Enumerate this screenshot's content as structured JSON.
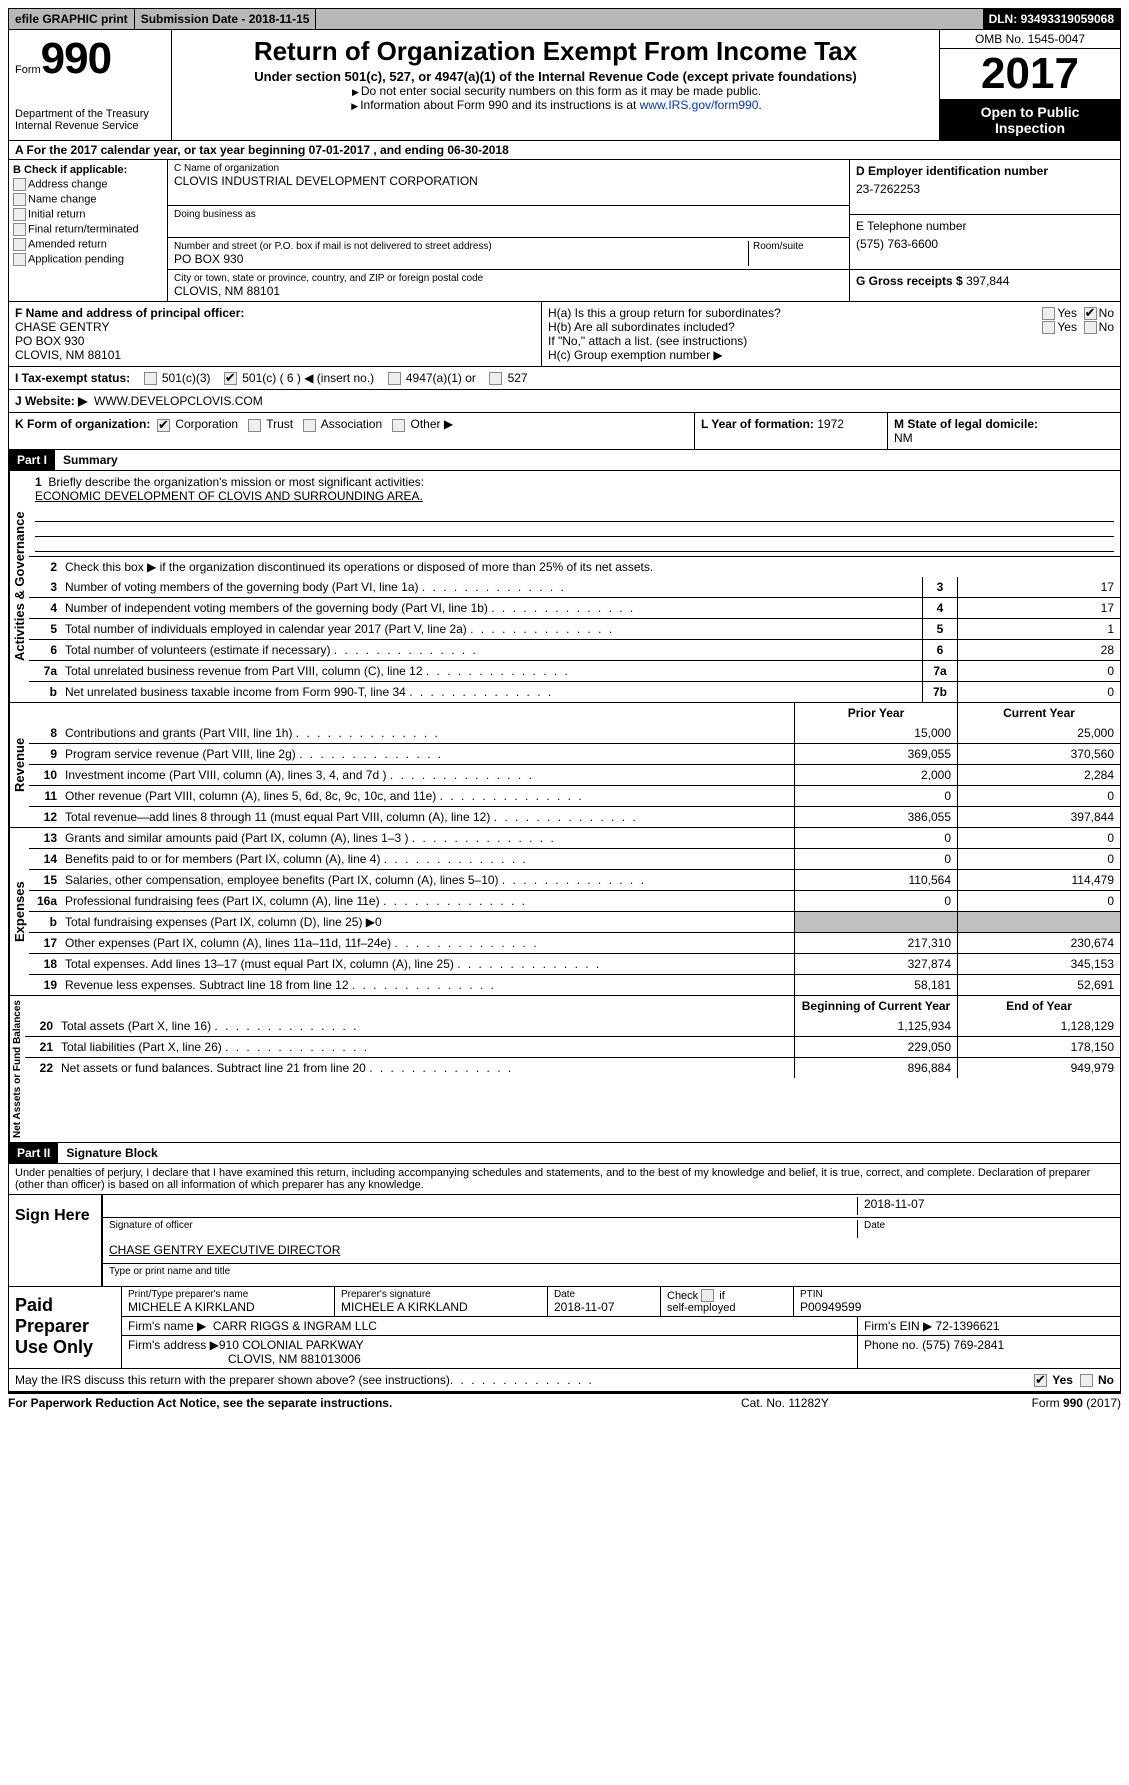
{
  "topbar": {
    "efile": "efile GRAPHIC print",
    "submission_label": "Submission Date - ",
    "submission_date": "2018-11-15",
    "dln_label": "DLN: ",
    "dln": "93493319059068"
  },
  "header": {
    "form_word": "Form",
    "form_num": "990",
    "dept": "Department of the Treasury",
    "irs": "Internal Revenue Service",
    "title": "Return of Organization Exempt From Income Tax",
    "subtitle": "Under section 501(c), 527, or 4947(a)(1) of the Internal Revenue Code (except private foundations)",
    "note1": "Do not enter social security numbers on this form as it may be made public.",
    "note2_pre": "Information about Form 990 and its instructions is at ",
    "note2_link": "www.IRS.gov/form990",
    "omb": "OMB No. 1545-0047",
    "year": "2017",
    "open": "Open to Public Inspection"
  },
  "lineA": "A  For the 2017 calendar year, or tax year beginning 07-01-2017   , and ending 06-30-2018",
  "sectionB": {
    "title": "B Check if applicable:",
    "items": [
      "Address change",
      "Name change",
      "Initial return",
      "Final return/terminated",
      "Amended return",
      "Application pending"
    ]
  },
  "sectionC": {
    "name_label": "C Name of organization",
    "name": "CLOVIS INDUSTRIAL DEVELOPMENT CORPORATION",
    "dba_label": "Doing business as",
    "street_label": "Number and street (or P.O. box if mail is not delivered to street address)",
    "room_label": "Room/suite",
    "street": "PO BOX 930",
    "city_label": "City or town, state or province, country, and ZIP or foreign postal code",
    "city": "CLOVIS, NM  88101"
  },
  "sectionD": {
    "label": "D Employer identification number",
    "value": "23-7262253"
  },
  "sectionE": {
    "label": "E Telephone number",
    "value": "(575) 763-6600"
  },
  "sectionG": {
    "label": "G Gross receipts $ ",
    "value": "397,844"
  },
  "sectionF": {
    "label": "F Name and address of principal officer:",
    "name": "CHASE GENTRY",
    "addr1": "PO BOX 930",
    "addr2": "CLOVIS, NM  88101"
  },
  "sectionH": {
    "ha": "H(a)  Is this a group return for subordinates?",
    "hb": "H(b)  Are all subordinates included?",
    "hb_note": "If \"No,\" attach a list. (see instructions)",
    "hc": "H(c)  Group exemption number ▶",
    "yes": "Yes",
    "no": "No"
  },
  "sectionI": {
    "label": "I  Tax-exempt status:",
    "c3": "501(c)(3)",
    "c": "501(c) ( 6 ) ◀ (insert no.)",
    "a4947": "4947(a)(1) or",
    "s527": "527"
  },
  "sectionJ": {
    "label": "J  Website: ▶",
    "value": "WWW.DEVELOPCLOVIS.COM"
  },
  "sectionK": {
    "label": "K Form of organization:",
    "corp": "Corporation",
    "trust": "Trust",
    "assoc": "Association",
    "other": "Other ▶"
  },
  "sectionL": {
    "label": "L Year of formation: ",
    "value": "1972"
  },
  "sectionM": {
    "label": "M State of legal domicile:",
    "value": "NM"
  },
  "part1": {
    "header": "Part I",
    "title": "Summary"
  },
  "gov": {
    "label": "Activities & Governance",
    "l1_pre": "Briefly describe the organization's mission or most significant activities:",
    "l1_val": "ECONOMIC DEVELOPMENT OF CLOVIS AND SURROUNDING AREA.",
    "l2": "Check this box ▶        if the organization discontinued its operations or disposed of more than 25% of its net assets.",
    "rows": [
      {
        "n": "3",
        "d": "Number of voting members of the governing body (Part VI, line 1a)",
        "b": "3",
        "v": "17"
      },
      {
        "n": "4",
        "d": "Number of independent voting members of the governing body (Part VI, line 1b)",
        "b": "4",
        "v": "17"
      },
      {
        "n": "5",
        "d": "Total number of individuals employed in calendar year 2017 (Part V, line 2a)",
        "b": "5",
        "v": "1"
      },
      {
        "n": "6",
        "d": "Total number of volunteers (estimate if necessary)",
        "b": "6",
        "v": "28"
      },
      {
        "n": "7a",
        "d": "Total unrelated business revenue from Part VIII, column (C), line 12",
        "b": "7a",
        "v": "0"
      },
      {
        "n": "b",
        "d": "Net unrelated business taxable income from Form 990-T, line 34",
        "b": "7b",
        "v": "0"
      }
    ]
  },
  "col_headers": {
    "prior": "Prior Year",
    "current": "Current Year",
    "begin": "Beginning of Current Year",
    "end": "End of Year"
  },
  "rev": {
    "label": "Revenue",
    "rows": [
      {
        "n": "8",
        "d": "Contributions and grants (Part VIII, line 1h)",
        "p": "15,000",
        "c": "25,000"
      },
      {
        "n": "9",
        "d": "Program service revenue (Part VIII, line 2g)",
        "p": "369,055",
        "c": "370,560"
      },
      {
        "n": "10",
        "d": "Investment income (Part VIII, column (A), lines 3, 4, and 7d )",
        "p": "2,000",
        "c": "2,284"
      },
      {
        "n": "11",
        "d": "Other revenue (Part VIII, column (A), lines 5, 6d, 8c, 9c, 10c, and 11e)",
        "p": "0",
        "c": "0"
      },
      {
        "n": "12",
        "d": "Total revenue—add lines 8 through 11 (must equal Part VIII, column (A), line 12)",
        "p": "386,055",
        "c": "397,844"
      }
    ]
  },
  "exp": {
    "label": "Expenses",
    "rows": [
      {
        "n": "13",
        "d": "Grants and similar amounts paid (Part IX, column (A), lines 1–3 )",
        "p": "0",
        "c": "0"
      },
      {
        "n": "14",
        "d": "Benefits paid to or for members (Part IX, column (A), line 4)",
        "p": "0",
        "c": "0"
      },
      {
        "n": "15",
        "d": "Salaries, other compensation, employee benefits (Part IX, column (A), lines 5–10)",
        "p": "110,564",
        "c": "114,479"
      },
      {
        "n": "16a",
        "d": "Professional fundraising fees (Part IX, column (A), line 11e)",
        "p": "0",
        "c": "0"
      },
      {
        "n": "b",
        "d": "Total fundraising expenses (Part IX, column (D), line 25) ▶0",
        "p": "",
        "c": "",
        "grey": true
      },
      {
        "n": "17",
        "d": "Other expenses (Part IX, column (A), lines 11a–11d, 11f–24e)",
        "p": "217,310",
        "c": "230,674"
      },
      {
        "n": "18",
        "d": "Total expenses. Add lines 13–17 (must equal Part IX, column (A), line 25)",
        "p": "327,874",
        "c": "345,153"
      },
      {
        "n": "19",
        "d": "Revenue less expenses. Subtract line 18 from line 12",
        "p": "58,181",
        "c": "52,691"
      }
    ]
  },
  "net": {
    "label": "Net Assets or Fund Balances",
    "rows": [
      {
        "n": "20",
        "d": "Total assets (Part X, line 16)",
        "p": "1,125,934",
        "c": "1,128,129"
      },
      {
        "n": "21",
        "d": "Total liabilities (Part X, line 26)",
        "p": "229,050",
        "c": "178,150"
      },
      {
        "n": "22",
        "d": "Net assets or fund balances. Subtract line 21 from line 20",
        "p": "896,884",
        "c": "949,979"
      }
    ]
  },
  "part2": {
    "header": "Part II",
    "title": "Signature Block",
    "perjury": "Under penalties of perjury, I declare that I have examined this return, including accompanying schedules and statements, and to the best of my knowledge and belief, it is true, correct, and complete. Declaration of preparer (other than officer) is based on all information of which preparer has any knowledge."
  },
  "sign": {
    "label": "Sign Here",
    "sig_label": "Signature of officer",
    "date_label": "Date",
    "date": "2018-11-07",
    "name": "CHASE GENTRY EXECUTIVE DIRECTOR",
    "name_label": "Type or print name and title"
  },
  "prep": {
    "label": "Paid Preparer Use Only",
    "pt_label": "Print/Type preparer's name",
    "pt_name": "MICHELE A KIRKLAND",
    "sig_label": "Preparer's signature",
    "sig_name": "MICHELE A KIRKLAND",
    "date_label": "Date",
    "date": "2018-11-07",
    "check_label": "Check        if self-employed",
    "ptin_label": "PTIN",
    "ptin": "P00949599",
    "firm_name_label": "Firm's name      ▶",
    "firm_name": "CARR RIGGS & INGRAM LLC",
    "firm_ein_label": "Firm's EIN ▶",
    "firm_ein": "72-1396621",
    "firm_addr_label": "Firm's address ▶",
    "firm_addr1": "910 COLONIAL PARKWAY",
    "firm_addr2": "CLOVIS, NM  881013006",
    "phone_label": "Phone no. ",
    "phone": "(575) 769-2841"
  },
  "may": {
    "text": "May the IRS discuss this return with the preparer shown above? (see instructions)",
    "yes": "Yes",
    "no": "No"
  },
  "footer": {
    "left": "For Paperwork Reduction Act Notice, see the separate instructions.",
    "center": "Cat. No. 11282Y",
    "right_pre": "Form ",
    "right_form": "990",
    "right_post": " (2017)"
  }
}
